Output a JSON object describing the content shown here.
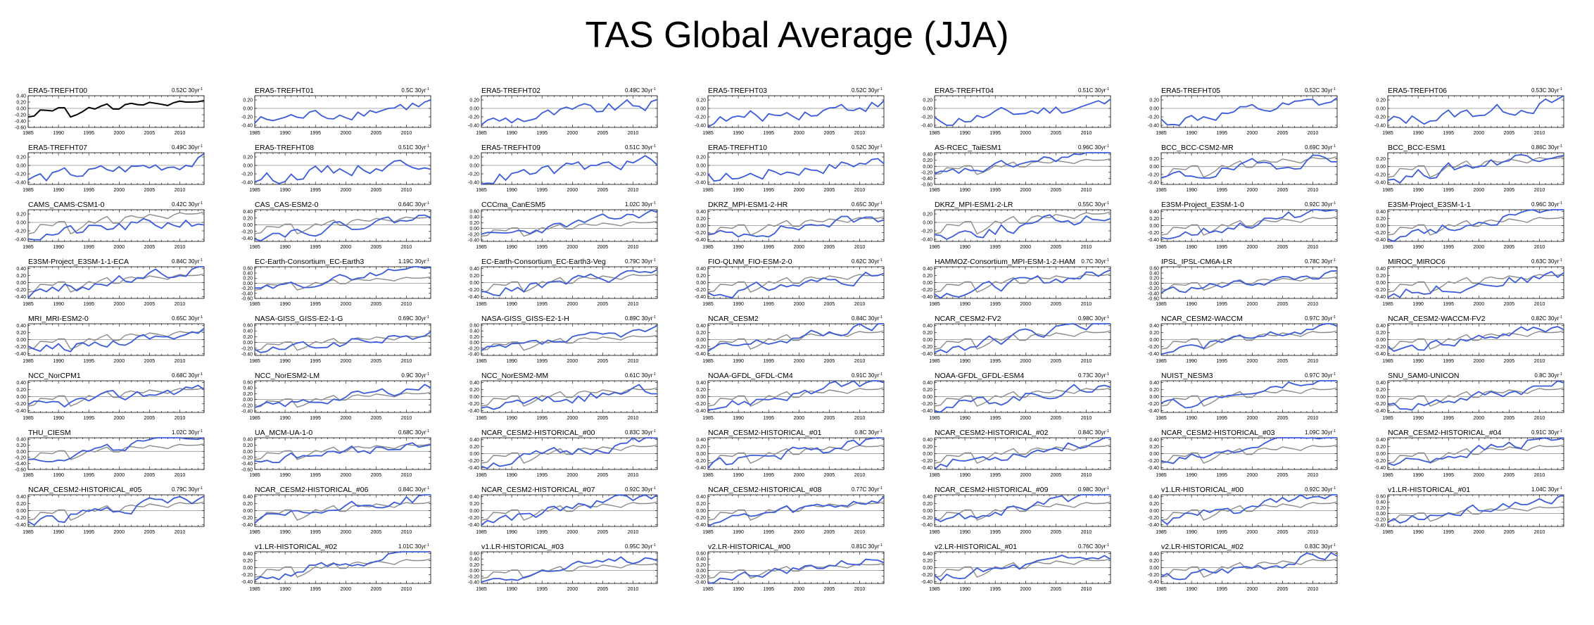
{
  "figure": {
    "title": "TAS Global Average (JJA)"
  },
  "style": {
    "model_color": "#3b5bdb",
    "obs_color": "#8c8c8c",
    "reference_color": "#000000",
    "zero_line_color": "#8c8c8c",
    "axis_color": "#000000"
  },
  "chart_data": {
    "type": "line",
    "x": [
      1985,
      1986,
      1987,
      1988,
      1989,
      1990,
      1991,
      1992,
      1993,
      1994,
      1995,
      1996,
      1997,
      1998,
      1999,
      2000,
      2001,
      2002,
      2003,
      2004,
      2005,
      2006,
      2007,
      2008,
      2009,
      2010,
      2011,
      2012,
      2013,
      2014
    ],
    "xticks": [
      1985,
      1990,
      1995,
      2000,
      2005,
      2010
    ],
    "trend_unit": "30yr",
    "observed_series_name": "ERA5-TREFHT00",
    "observed_series": [
      -0.27,
      -0.24,
      -0.05,
      -0.06,
      -0.08,
      0.02,
      0.02,
      -0.27,
      -0.2,
      -0.1,
      0.03,
      -0.02,
      0.07,
      0.14,
      -0.02,
      -0.02,
      0.12,
      0.16,
      0.12,
      0.11,
      0.19,
      0.16,
      0.13,
      0.09,
      0.18,
      0.23,
      0.2,
      0.2,
      0.21,
      0.25
    ],
    "panels": [
      {
        "name": "ERA5-TREFHT00",
        "trend": "0.52C",
        "yticks": [
          "0.40",
          "0.20",
          "0.00",
          "-0.20",
          "-0.40",
          "-0.60"
        ],
        "ylim": [
          -0.6,
          0.4
        ],
        "is_reference": true,
        "seed": 0
      },
      {
        "name": "ERA5-TREFHT01",
        "trend": "0.5C",
        "yticks": [
          "0.20",
          "0.00",
          "-0.20",
          "-0.40"
        ],
        "ylim": [
          -0.45,
          0.3
        ],
        "seed": 1
      },
      {
        "name": "ERA5-TREFHT02",
        "trend": "0.49C",
        "yticks": [
          "0.20",
          "0.00",
          "-0.20",
          "-0.40"
        ],
        "ylim": [
          -0.45,
          0.3
        ],
        "seed": 2
      },
      {
        "name": "ERA5-TREFHT03",
        "trend": "0.52C",
        "yticks": [
          "0.20",
          "0.00",
          "-0.20",
          "-0.40"
        ],
        "ylim": [
          -0.45,
          0.3
        ],
        "seed": 3
      },
      {
        "name": "ERA5-TREFHT04",
        "trend": "0.51C",
        "yticks": [
          "0.20",
          "0.00",
          "-0.20",
          "-0.40"
        ],
        "ylim": [
          -0.45,
          0.3
        ],
        "seed": 4
      },
      {
        "name": "ERA5-TREFHT05",
        "trend": "0.52C",
        "yticks": [
          "0.20",
          "0.00",
          "-0.20",
          "-0.40"
        ],
        "ylim": [
          -0.45,
          0.3
        ],
        "seed": 5
      },
      {
        "name": "ERA5-TREFHT06",
        "trend": "0.53C",
        "yticks": [
          "0.20",
          "0.00",
          "-0.20",
          "-0.40"
        ],
        "ylim": [
          -0.45,
          0.3
        ],
        "seed": 6
      },
      {
        "name": "ERA5-TREFHT07",
        "trend": "0.49C",
        "yticks": [
          "0.20",
          "0.00",
          "-0.20",
          "-0.40"
        ],
        "ylim": [
          -0.45,
          0.3
        ],
        "seed": 7
      },
      {
        "name": "ERA5-TREFHT08",
        "trend": "0.51C",
        "yticks": [
          "0.20",
          "0.00",
          "-0.20",
          "-0.40"
        ],
        "ylim": [
          -0.45,
          0.3
        ],
        "seed": 8
      },
      {
        "name": "ERA5-TREFHT09",
        "trend": "0.51C",
        "yticks": [
          "0.20",
          "0.00",
          "-0.20",
          "-0.40"
        ],
        "ylim": [
          -0.45,
          0.3
        ],
        "seed": 9
      },
      {
        "name": "ERA5-TREFHT10",
        "trend": "0.52C",
        "yticks": [
          "0.20",
          "0.00",
          "-0.20",
          "-0.40"
        ],
        "ylim": [
          -0.45,
          0.3
        ],
        "seed": 10
      },
      {
        "name": "AS-RCEC_TaiESM1",
        "trend": "0.96C",
        "yticks": [
          "0.40",
          "0.20",
          "0.00",
          "-0.20",
          "-0.40",
          "-0.60"
        ],
        "ylim": [
          -0.6,
          0.45
        ],
        "seed": 11
      },
      {
        "name": "BCC_BCC-CSM2-MR",
        "trend": "0.69C",
        "yticks": [
          "0.20",
          "0.00",
          "-0.20",
          "-0.40"
        ],
        "ylim": [
          -0.45,
          0.35
        ],
        "seed": 12
      },
      {
        "name": "BCC_BCC-ESM1",
        "trend": "0.86C",
        "yticks": [
          "0.20",
          "0.00",
          "-0.20",
          "-0.40"
        ],
        "ylim": [
          -0.45,
          0.35
        ],
        "seed": 13
      },
      {
        "name": "CAMS_CAMS-CSM1-0",
        "trend": "0.42C",
        "yticks": [
          "0.20",
          "0.00",
          "-0.20",
          "-0.40"
        ],
        "ylim": [
          -0.45,
          0.3
        ],
        "seed": 14
      },
      {
        "name": "CAS_CAS-ESM2-0",
        "trend": "0.64C",
        "yticks": [
          "0.40",
          "0.20",
          "0.00",
          "-0.20",
          "-0.40"
        ],
        "ylim": [
          -0.5,
          0.45
        ],
        "seed": 15
      },
      {
        "name": "CCCma_CanESM5",
        "trend": "1.02C",
        "yticks": [
          "0.60",
          "0.40",
          "0.20",
          "0.00",
          "-0.20",
          "-0.40"
        ],
        "ylim": [
          -0.45,
          0.65
        ],
        "seed": 16
      },
      {
        "name": "DKRZ_MPI-ESM1-2-HR",
        "trend": "0.65C",
        "yticks": [
          "0.40",
          "0.20",
          "0.00",
          "-0.20",
          "-0.40"
        ],
        "ylim": [
          -0.45,
          0.45
        ],
        "seed": 17
      },
      {
        "name": "DKRZ_MPI-ESM1-2-LR",
        "trend": "0.55C",
        "yticks": [
          "0.20",
          "0.00",
          "-0.20",
          "-0.40"
        ],
        "ylim": [
          -0.45,
          0.3
        ],
        "seed": 18
      },
      {
        "name": "E3SM-Project_E3SM-1-0",
        "trend": "0.92C",
        "yticks": [
          "0.40",
          "0.20",
          "0.00",
          "-0.20",
          "-0.40"
        ],
        "ylim": [
          -0.45,
          0.45
        ],
        "seed": 19
      },
      {
        "name": "E3SM-Project_E3SM-1-1",
        "trend": "0.96C",
        "yticks": [
          "0.40",
          "0.20",
          "0.00",
          "-0.20",
          "-0.40"
        ],
        "ylim": [
          -0.45,
          0.45
        ],
        "seed": 20
      },
      {
        "name": "E3SM-Project_E3SM-1-1-ECA",
        "trend": "0.84C",
        "yticks": [
          "0.40",
          "0.20",
          "0.00",
          "-0.20",
          "-0.40"
        ],
        "ylim": [
          -0.45,
          0.45
        ],
        "seed": 21
      },
      {
        "name": "EC-Earth-Consortium_EC-Earth3",
        "trend": "1.19C",
        "yticks": [
          "0.60",
          "0.40",
          "0.20",
          "0.00",
          "-0.20",
          "-0.40",
          "-0.60"
        ],
        "ylim": [
          -0.6,
          0.65
        ],
        "seed": 22
      },
      {
        "name": "EC-Earth-Consortium_EC-Earth3-Veg",
        "trend": "0.79C",
        "yticks": [
          "0.40",
          "0.20",
          "0.00",
          "-0.20",
          "-0.40"
        ],
        "ylim": [
          -0.45,
          0.45
        ],
        "seed": 23
      },
      {
        "name": "FIO-QLNM_FIO-ESM-2-0",
        "trend": "0.62C",
        "yticks": [
          "0.40",
          "0.20",
          "0.00",
          "-0.20",
          "-0.40"
        ],
        "ylim": [
          -0.45,
          0.45
        ],
        "seed": 24
      },
      {
        "name": "HAMMOZ-Consortium_MPI-ESM-1-2-HAM",
        "trend": "0.7C",
        "yticks": [
          "0.40",
          "0.20",
          "0.00",
          "-0.20",
          "-0.40"
        ],
        "ylim": [
          -0.45,
          0.45
        ],
        "seed": 25
      },
      {
        "name": "IPSL_IPSL-CM6A-LR",
        "trend": "0.78C",
        "yticks": [
          "0.60",
          "0.40",
          "0.20",
          "0.00",
          "-0.20",
          "-0.40",
          "-0.60"
        ],
        "ylim": [
          -0.6,
          0.65
        ],
        "seed": 26
      },
      {
        "name": "MIROC_MIROC6",
        "trend": "0.63C",
        "yticks": [
          "0.40",
          "0.20",
          "0.00",
          "-0.20",
          "-0.40"
        ],
        "ylim": [
          -0.45,
          0.45
        ],
        "seed": 27
      },
      {
        "name": "MRI_MRI-ESM2-0",
        "trend": "0.65C",
        "yticks": [
          "0.40",
          "0.20",
          "0.00",
          "-0.20",
          "-0.40"
        ],
        "ylim": [
          -0.45,
          0.45
        ],
        "seed": 28
      },
      {
        "name": "NASA-GISS_GISS-E2-1-G",
        "trend": "0.69C",
        "yticks": [
          "0.60",
          "0.40",
          "0.20",
          "0.00",
          "-0.20",
          "-0.40"
        ],
        "ylim": [
          -0.45,
          0.65
        ],
        "seed": 29
      },
      {
        "name": "NASA-GISS_GISS-E2-1-H",
        "trend": "0.89C",
        "yticks": [
          "0.60",
          "0.40",
          "0.20",
          "0.00",
          "-0.20",
          "-0.40"
        ],
        "ylim": [
          -0.45,
          0.65
        ],
        "seed": 30
      },
      {
        "name": "NCAR_CESM2",
        "trend": "0.84C",
        "yticks": [
          "0.40",
          "0.20",
          "0.00",
          "-0.20",
          "-0.40"
        ],
        "ylim": [
          -0.45,
          0.45
        ],
        "seed": 31
      },
      {
        "name": "NCAR_CESM2-FV2",
        "trend": "0.98C",
        "yticks": [
          "0.40",
          "0.20",
          "0.00",
          "-0.20",
          "-0.40"
        ],
        "ylim": [
          -0.45,
          0.45
        ],
        "seed": 32
      },
      {
        "name": "NCAR_CESM2-WACCM",
        "trend": "0.97C",
        "yticks": [
          "0.40",
          "0.20",
          "0.00",
          "-0.20",
          "-0.40"
        ],
        "ylim": [
          -0.45,
          0.45
        ],
        "seed": 33
      },
      {
        "name": "NCAR_CESM2-WACCM-FV2",
        "trend": "0.82C",
        "yticks": [
          "0.40",
          "0.20",
          "0.00",
          "-0.20",
          "-0.40"
        ],
        "ylim": [
          -0.45,
          0.45
        ],
        "seed": 34
      },
      {
        "name": "NCC_NorCPM1",
        "trend": "0.68C",
        "yticks": [
          "0.40",
          "0.20",
          "0.00",
          "-0.20",
          "-0.40"
        ],
        "ylim": [
          -0.45,
          0.45
        ],
        "seed": 35
      },
      {
        "name": "NCC_NorESM2-LM",
        "trend": "0.9C",
        "yticks": [
          "0.60",
          "0.40",
          "0.20",
          "0.00",
          "-0.20",
          "-0.40"
        ],
        "ylim": [
          -0.45,
          0.65
        ],
        "seed": 36
      },
      {
        "name": "NCC_NorESM2-MM",
        "trend": "0.61C",
        "yticks": [
          "0.40",
          "0.20",
          "0.00",
          "-0.20",
          "-0.40"
        ],
        "ylim": [
          -0.45,
          0.45
        ],
        "seed": 37
      },
      {
        "name": "NOAA-GFDL_GFDL-CM4",
        "trend": "0.91C",
        "yticks": [
          "0.40",
          "0.20",
          "0.00",
          "-0.20",
          "-0.40"
        ],
        "ylim": [
          -0.45,
          0.45
        ],
        "seed": 38
      },
      {
        "name": "NOAA-GFDL_GFDL-ESM4",
        "trend": "0.73C",
        "yticks": [
          "0.40",
          "0.20",
          "0.00",
          "-0.20",
          "-0.40"
        ],
        "ylim": [
          -0.45,
          0.45
        ],
        "seed": 39
      },
      {
        "name": "NUIST_NESM3",
        "trend": "0.97C",
        "yticks": [
          "0.40",
          "0.20",
          "0.00",
          "-0.20",
          "-0.40"
        ],
        "ylim": [
          -0.45,
          0.45
        ],
        "seed": 40
      },
      {
        "name": "SNU_SAM0-UNICON",
        "trend": "0.8C",
        "yticks": [
          "0.40",
          "0.20",
          "0.00",
          "-0.20",
          "-0.40"
        ],
        "ylim": [
          -0.45,
          0.45
        ],
        "seed": 41
      },
      {
        "name": "THU_CIESM",
        "trend": "1.02C",
        "yticks": [
          "0.40",
          "0.20",
          "0.00",
          "-0.20",
          "-0.40",
          "-0.60"
        ],
        "ylim": [
          -0.6,
          0.45
        ],
        "seed": 42
      },
      {
        "name": "UA_MCM-UA-1-0",
        "trend": "0.68C",
        "yticks": [
          "0.40",
          "0.20",
          "0.00",
          "-0.20",
          "-0.40",
          "-0.60"
        ],
        "ylim": [
          -0.6,
          0.45
        ],
        "seed": 43
      },
      {
        "name": "NCAR_CESM2-HISTORICAL_#00",
        "trend": "0.83C",
        "yticks": [
          "0.40",
          "0.20",
          "0.00",
          "-0.20",
          "-0.40"
        ],
        "ylim": [
          -0.45,
          0.45
        ],
        "seed": 44
      },
      {
        "name": "NCAR_CESM2-HISTORICAL_#01",
        "trend": "0.8C",
        "yticks": [
          "0.40",
          "0.20",
          "0.00",
          "-0.20",
          "-0.40"
        ],
        "ylim": [
          -0.45,
          0.45
        ],
        "seed": 45
      },
      {
        "name": "NCAR_CESM2-HISTORICAL_#02",
        "trend": "0.84C",
        "yticks": [
          "0.40",
          "0.20",
          "0.00",
          "-0.20",
          "-0.40"
        ],
        "ylim": [
          -0.45,
          0.45
        ],
        "seed": 46
      },
      {
        "name": "NCAR_CESM2-HISTORICAL_#03",
        "trend": "1.09C",
        "yticks": [
          "0.40",
          "0.20",
          "0.00",
          "-0.20",
          "-0.40"
        ],
        "ylim": [
          -0.45,
          0.45
        ],
        "seed": 47
      },
      {
        "name": "NCAR_CESM2-HISTORICAL_#04",
        "trend": "0.91C",
        "yticks": [
          "0.40",
          "0.20",
          "0.00",
          "-0.20",
          "-0.40"
        ],
        "ylim": [
          -0.45,
          0.45
        ],
        "seed": 48
      },
      {
        "name": "NCAR_CESM2-HISTORICAL_#05",
        "trend": "0.79C",
        "yticks": [
          "0.40",
          "0.20",
          "0.00",
          "-0.20",
          "-0.40"
        ],
        "ylim": [
          -0.45,
          0.45
        ],
        "seed": 49
      },
      {
        "name": "NCAR_CESM2-HISTORICAL_#06",
        "trend": "0.84C",
        "yticks": [
          "0.40",
          "0.20",
          "0.00",
          "-0.20",
          "-0.40"
        ],
        "ylim": [
          -0.45,
          0.45
        ],
        "seed": 50
      },
      {
        "name": "NCAR_CESM2-HISTORICAL_#07",
        "trend": "0.92C",
        "yticks": [
          "0.40",
          "0.20",
          "0.00",
          "-0.20",
          "-0.40"
        ],
        "ylim": [
          -0.45,
          0.45
        ],
        "seed": 51
      },
      {
        "name": "NCAR_CESM2-HISTORICAL_#08",
        "trend": "0.77C",
        "yticks": [
          "0.40",
          "0.20",
          "0.00",
          "-0.20",
          "-0.40"
        ],
        "ylim": [
          -0.45,
          0.45
        ],
        "seed": 52
      },
      {
        "name": "NCAR_CESM2-HISTORICAL_#09",
        "trend": "0.98C",
        "yticks": [
          "0.40",
          "0.20",
          "0.00",
          "-0.20",
          "-0.40"
        ],
        "ylim": [
          -0.45,
          0.45
        ],
        "seed": 53
      },
      {
        "name": "v1.LR-HISTORICAL_#00",
        "trend": "0.92C",
        "yticks": [
          "0.40",
          "0.20",
          "0.00",
          "-0.20",
          "-0.40"
        ],
        "ylim": [
          -0.45,
          0.45
        ],
        "seed": 54
      },
      {
        "name": "v1.LR-HISTORICAL_#01",
        "trend": "1.04C",
        "yticks": [
          "0.60",
          "0.40",
          "0.20",
          "0.00",
          "-0.20",
          "-0.40"
        ],
        "ylim": [
          -0.45,
          0.65
        ],
        "seed": 55
      },
      {
        "name": "v1.LR-HISTORICAL_#02",
        "trend": "1.01C",
        "yticks": [
          "0.40",
          "0.20",
          "0.00",
          "-0.20",
          "-0.40"
        ],
        "ylim": [
          -0.45,
          0.45
        ],
        "seed": 56
      },
      {
        "name": "v1.LR-HISTORICAL_#03",
        "trend": "0.95C",
        "yticks": [
          "0.60",
          "0.40",
          "0.20",
          "0.00",
          "-0.20",
          "-0.40"
        ],
        "ylim": [
          -0.45,
          0.65
        ],
        "seed": 57
      },
      {
        "name": "v2.LR-HISTORICAL_#00",
        "trend": "0.81C",
        "yticks": [
          "0.60",
          "0.40",
          "0.20",
          "0.00",
          "-0.20",
          "-0.40"
        ],
        "ylim": [
          -0.45,
          0.65
        ],
        "seed": 58
      },
      {
        "name": "v2.LR-HISTORICAL_#01",
        "trend": "0.76C",
        "yticks": [
          "0.40",
          "0.20",
          "0.00",
          "-0.20",
          "-0.40"
        ],
        "ylim": [
          -0.45,
          0.45
        ],
        "seed": 59
      },
      {
        "name": "v2.LR-HISTORICAL_#02",
        "trend": "0.83C",
        "yticks": [
          "0.40",
          "0.20",
          "0.00",
          "-0.20",
          "-0.40"
        ],
        "ylim": [
          -0.45,
          0.45
        ],
        "seed": 60
      }
    ]
  }
}
